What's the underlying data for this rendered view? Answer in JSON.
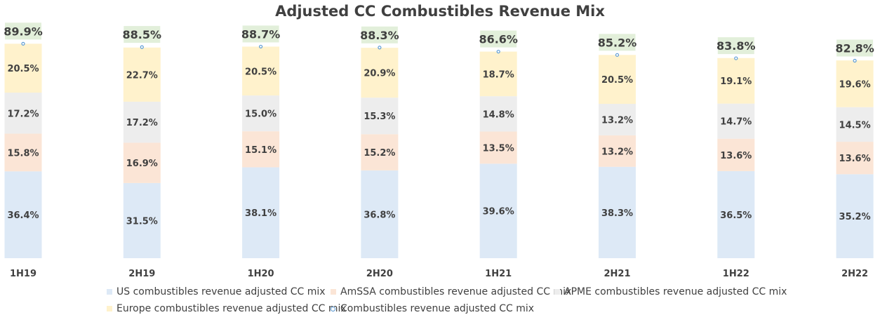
{
  "chart_data": {
    "type": "bar",
    "title": "Adjusted CC Combustibles Revenue Mix",
    "categories": [
      "1H19",
      "2H19",
      "1H20",
      "2H20",
      "1H21",
      "2H21",
      "1H22",
      "2H22"
    ],
    "stacked": true,
    "series": [
      {
        "name": "US combustibles revenue adjusted CC mix",
        "type": "bar",
        "color": "#dde9f6",
        "values": [
          36.4,
          31.5,
          38.1,
          36.8,
          39.6,
          38.3,
          36.5,
          35.2
        ],
        "labels": [
          "36.4%",
          "31.5%",
          "38.1%",
          "36.8%",
          "39.6%",
          "38.3%",
          "36.5%",
          "35.2%"
        ]
      },
      {
        "name": "AmSSA combustibles revenue adjusted CC mix",
        "type": "bar",
        "color": "#fbe5d6",
        "values": [
          15.8,
          16.9,
          15.1,
          15.2,
          13.5,
          13.2,
          13.6,
          13.6
        ],
        "labels": [
          "15.8%",
          "16.9%",
          "15.1%",
          "15.2%",
          "13.5%",
          "13.2%",
          "13.6%",
          "13.6%"
        ]
      },
      {
        "name": "APME combustibles revenue adjusted CC mix",
        "type": "bar",
        "color": "#ededed",
        "values": [
          17.2,
          17.2,
          15.0,
          15.3,
          14.8,
          13.2,
          14.7,
          14.5
        ],
        "labels": [
          "17.2%",
          "17.2%",
          "15.0%",
          "15.3%",
          "14.8%",
          "13.2%",
          "14.7%",
          "14.5%"
        ]
      },
      {
        "name": "Europe combustibles revenue adjusted CC mix",
        "type": "bar",
        "color": "#fff2cc",
        "values": [
          20.5,
          22.7,
          20.5,
          20.9,
          18.7,
          20.5,
          19.1,
          19.6
        ],
        "labels": [
          "20.5%",
          "22.7%",
          "20.5%",
          "20.9%",
          "18.7%",
          "20.5%",
          "19.1%",
          "19.6%"
        ]
      },
      {
        "name": "Combustibles revenue adjusted CC mix",
        "type": "marker",
        "color": "#5b9bd5",
        "label_bg": "#e2efda",
        "values": [
          89.9,
          88.5,
          88.7,
          88.3,
          86.6,
          85.2,
          83.8,
          82.8
        ],
        "labels": [
          "89.9%",
          "88.5%",
          "88.7%",
          "88.3%",
          "86.6%",
          "85.2%",
          "83.8%",
          "82.8%"
        ]
      }
    ],
    "ylim": [
      0,
      100
    ],
    "grid": false,
    "legend_position": "bottom"
  },
  "legend": {
    "us": "US combustibles revenue adjusted CC mix",
    "amssa": "AmSSA combustibles revenue adjusted CC mix",
    "apme": "APME combustibles revenue adjusted CC mix",
    "europe": "Europe combustibles revenue adjusted CC mix",
    "total": "Combustibles revenue adjusted CC mix"
  }
}
